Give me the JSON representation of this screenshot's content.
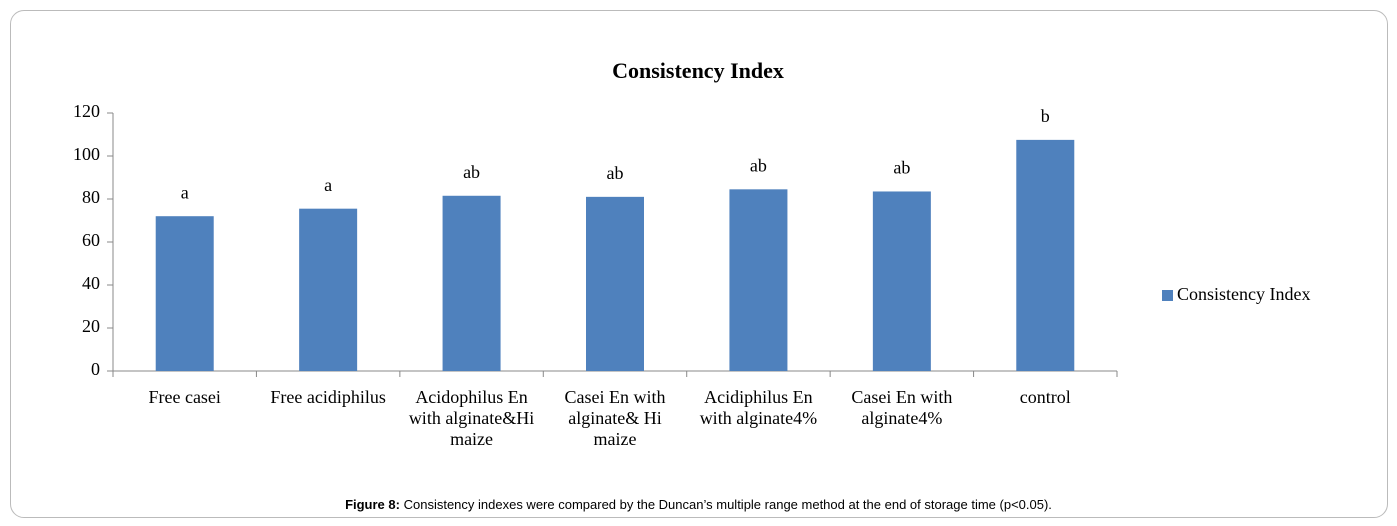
{
  "chart_data": {
    "type": "bar",
    "title": "Consistency Index",
    "categories": [
      "Free casei",
      "Free acidiphilus",
      "Acidophilus En with alginate&Hi maize",
      "Casei En with alginate& Hi maize",
      "Acidiphilus En with alginate4%",
      "Casei En with alginate4%",
      "control"
    ],
    "series": [
      {
        "name": "Consistency Index",
        "color": "#4f81bd",
        "values": [
          72,
          75.5,
          81.5,
          81,
          84.5,
          83.5,
          107.5
        ]
      }
    ],
    "annotations": [
      "a",
      "a",
      "ab",
      "ab",
      "ab",
      "ab",
      "b"
    ],
    "ylim": [
      0,
      120
    ],
    "yticks": [
      0,
      20,
      40,
      60,
      80,
      100,
      120
    ],
    "legend": "right"
  },
  "caption": {
    "label": "Figure 8:",
    "text": "Consistency indexes were compared by the Duncan’s multiple range method at the end of storage time (p<0.05)."
  }
}
